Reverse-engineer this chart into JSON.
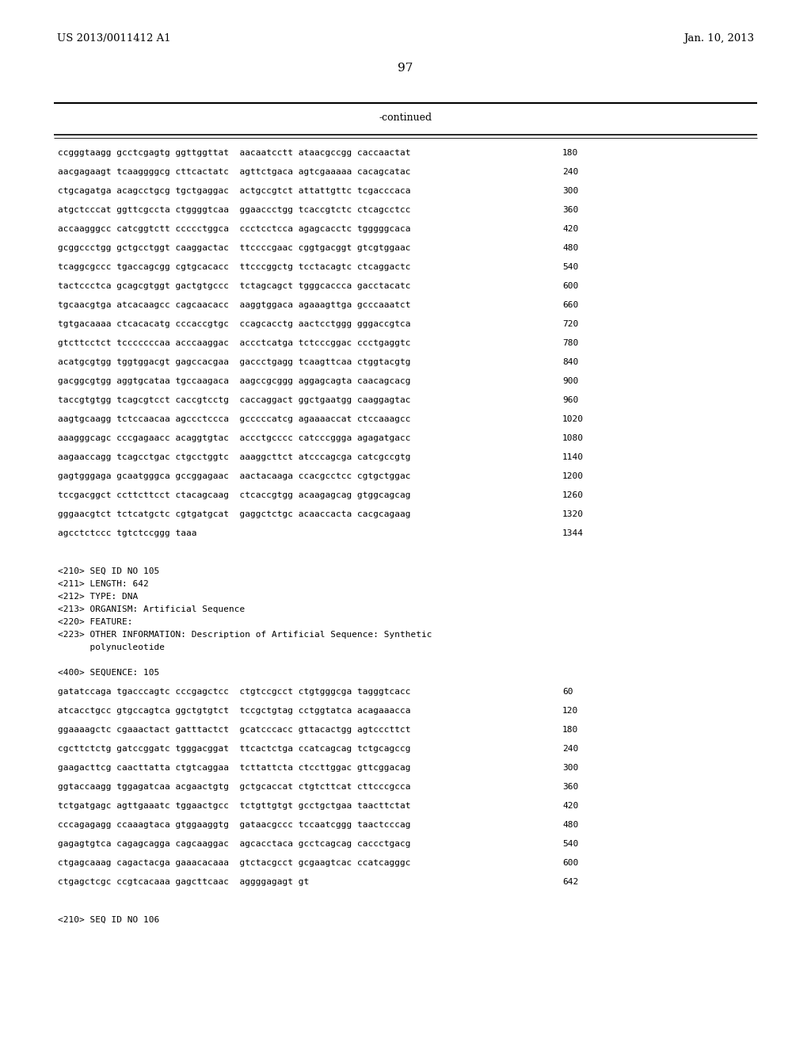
{
  "header_left": "US 2013/0011412 A1",
  "header_right": "Jan. 10, 2013",
  "page_number": "97",
  "continued_label": "-continued",
  "background_color": "#ffffff",
  "text_color": "#000000",
  "sequence_lines_top": [
    [
      "ccgggtaagg gcctcgagtg ggttggttat  aacaatcctt ataacgccgg caccaactat",
      "180"
    ],
    [
      "aacgagaagt tcaaggggcg cttcactatc  agttctgaca agtcgaaaaa cacagcatac",
      "240"
    ],
    [
      "ctgcagatga acagcctgcg tgctgaggac  actgccgtct attattgttc tcgacccaca",
      "300"
    ],
    [
      "atgctcccat ggttcgccta ctggggtcaa  ggaaccctgg tcaccgtctc ctcagcctcc",
      "360"
    ],
    [
      "accaagggcc catcggtctt ccccctggca  ccctcctcca agagcacctc tgggggcaca",
      "420"
    ],
    [
      "gcggccctgg gctgcctggt caaggactac  ttccccgaac cggtgacggt gtcgtggaac",
      "480"
    ],
    [
      "tcaggcgccc tgaccagcgg cgtgcacacc  ttcccggctg tcctacagtc ctcaggactc",
      "540"
    ],
    [
      "tactccctca gcagcgtggt gactgtgccc  tctagcagct tgggcaccca gacctacatc",
      "600"
    ],
    [
      "tgcaacgtga atcacaagcc cagcaacacc  aaggtggaca agaaagttga gcccaaatct",
      "660"
    ],
    [
      "tgtgacaaaa ctcacacatg cccaccgtgc  ccagcacctg aactcctggg gggaccgtca",
      "720"
    ],
    [
      "gtcttcctct tcccccccaa acccaaggac  accctcatga tctcccggac ccctgaggtc",
      "780"
    ],
    [
      "acatgcgtgg tggtggacgt gagccacgaa  gaccctgagg tcaagttcaa ctggtacgtg",
      "840"
    ],
    [
      "gacggcgtgg aggtgcataa tgccaagaca  aagccgcggg aggagcagta caacagcacg",
      "900"
    ],
    [
      "taccgtgtgg tcagcgtcct caccgtcctg  caccaggact ggctgaatgg caaggagtac",
      "960"
    ],
    [
      "aagtgcaagg tctccaacaa agccctccca  gcccccatcg agaaaaccat ctccaaagcc",
      "1020"
    ],
    [
      "aaagggcagc cccgagaacc acaggtgtac  accctgcccc catcccggga agagatgacc",
      "1080"
    ],
    [
      "aagaaccagg tcagcctgac ctgcctggtc  aaaggcttct atcccagcga catcgccgtg",
      "1140"
    ],
    [
      "gagtgggaga gcaatgggca gccggagaac  aactacaaga ccacgcctcc cgtgctggac",
      "1200"
    ],
    [
      "tccgacggct ccttcttcct ctacagcaag  ctcaccgtgg acaagagcag gtggcagcag",
      "1260"
    ],
    [
      "gggaacgtct tctcatgctc cgtgatgcat  gaggctctgc acaaccacta cacgcagaag",
      "1320"
    ],
    [
      "agcctctccc tgtctccggg taaa",
      "1344"
    ]
  ],
  "meta_lines": [
    "<210> SEQ ID NO 105",
    "<211> LENGTH: 642",
    "<212> TYPE: DNA",
    "<213> ORGANISM: Artificial Sequence",
    "<220> FEATURE:",
    "<223> OTHER INFORMATION: Description of Artificial Sequence: Synthetic",
    "      polynucleotide"
  ],
  "sequence_label": "<400> SEQUENCE: 105",
  "sequence_lines_bottom": [
    [
      "gatatccaga tgacccagtc cccgagctcc  ctgtccgcct ctgtgggcga tagggtcacc",
      "60"
    ],
    [
      "atcacctgcc gtgccagtca ggctgtgtct  tccgctgtag cctggtatca acagaaacca",
      "120"
    ],
    [
      "ggaaaagctc cgaaactact gatttactct  gcatcccacc gttacactgg agtcccttct",
      "180"
    ],
    [
      "cgcttctctg gatccggatc tgggacggat  ttcactctga ccatcagcag tctgcagccg",
      "240"
    ],
    [
      "gaagacttcg caacttatta ctgtcaggaa  tcttattcta ctccttggac gttcggacag",
      "300"
    ],
    [
      "ggtaccaagg tggagatcaa acgaactgtg  gctgcaccat ctgtcttcat cttcccgcca",
      "360"
    ],
    [
      "tctgatgagc agttgaaatc tggaactgcc  tctgttgtgt gcctgctgaa taacttctat",
      "420"
    ],
    [
      "cccagagagg ccaaagtaca gtggaaggtg  gataacgccc tccaatcggg taactcccag",
      "480"
    ],
    [
      "gagagtgtca cagagcagga cagcaaggac  agcacctaca gcctcagcag caccctgacg",
      "540"
    ],
    [
      "ctgagcaaag cagactacga gaaacacaaa  gtctacgcct gcgaagtcac ccatcagggc",
      "600"
    ],
    [
      "ctgagctcgc ccgtcacaaa gagcttcaac  aggggagagt gt",
      "642"
    ]
  ],
  "footer_label": "<210> SEQ ID NO 106"
}
